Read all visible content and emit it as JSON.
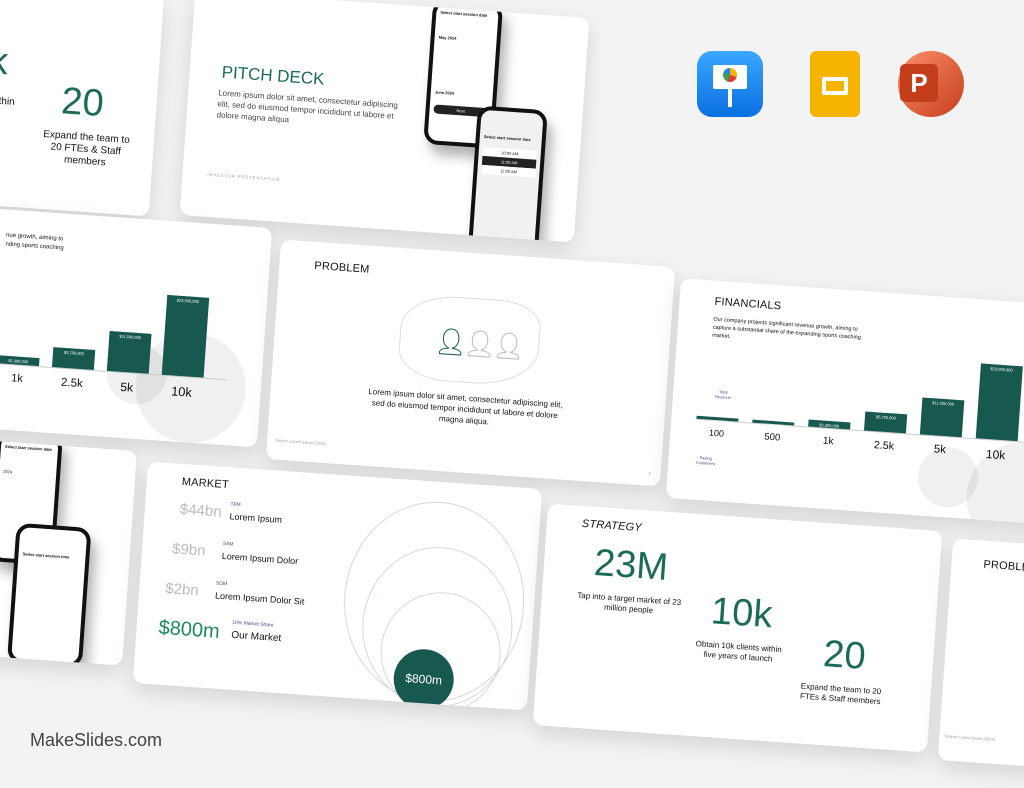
{
  "brand": "MakeSlides.com",
  "app_icons": [
    {
      "name": "keynote-icon",
      "color": "#1e8ef5"
    },
    {
      "name": "google-slides-icon",
      "color": "#f4b400"
    },
    {
      "name": "powerpoint-icon",
      "color": "#d24726"
    }
  ],
  "accent": "#1a6b58",
  "strategy_crop": {
    "fragment1": "k",
    "fragment2": "s within",
    "fragment3": "nch",
    "value": "20",
    "caption": "Expand the team to 20 FTEs & Staff members",
    "page": "8"
  },
  "pitch": {
    "title": "PITCH DECK",
    "body": "Lorem ipsum dolor sit amet, consectetur adipiscing elit, sed do eiusmod tempor incididunt ut labore et dolore magna aliqua",
    "footer": "INVESTOR PRESENTATION",
    "phone1_title": "Select start session date",
    "phone1_month1": "May 2024",
    "phone1_month2": "June 2024",
    "phone1_button": "Next",
    "phone2_title": "Select start session time",
    "phone2_slots": [
      "10:00 AM",
      "11:00 AM",
      "12:00 AM"
    ]
  },
  "chart_left": {
    "text1": "nue growth, aiming to",
    "text2": "nding sports coaching",
    "bars": [
      {
        "label": "$2,300,000",
        "cat": "1k",
        "value": 2300000
      },
      {
        "label": "$5,750,000",
        "cat": "2.5k",
        "value": 5750000
      },
      {
        "label": "$11,500,000",
        "cat": "5k",
        "value": 11500000
      },
      {
        "label": "$23,000,000",
        "cat": "10k",
        "value": 23000000
      }
    ],
    "page": "10"
  },
  "problem": {
    "title": "PROBLEM",
    "body": "Lorem ipsum dolor sit amet, consectetur adipiscing elit, sed do eiusmod tempor incididunt ut labore et dolore magna aliqua.",
    "source": "Source: Lorem ipsum (2024)",
    "page": "3"
  },
  "financials": {
    "title": "FINANCIALS",
    "body": "Our company projects significant revenue growth, aiming to capture a substantial share of the expanding sports coaching market.",
    "rev_label": "Total Revenue",
    "cust_label": "Paying Customers",
    "bars": [
      {
        "label": "$200,000",
        "cat": "100",
        "value": 200000
      },
      {
        "label": "$1,000,000",
        "cat": "500",
        "value": 1000000
      },
      {
        "label": "$2,300,000",
        "cat": "1k",
        "value": 2300000
      },
      {
        "label": "$5,750,000",
        "cat": "2.5k",
        "value": 5750000
      },
      {
        "label": "$11,500,000",
        "cat": "5k",
        "value": 11500000
      },
      {
        "label": "$23,000,000",
        "cat": "10k",
        "value": 23000000
      }
    ]
  },
  "phone_crop": {
    "title": "Select start session date",
    "title2": "Select start session time",
    "month": "2024"
  },
  "market": {
    "title": "MARKET",
    "rows": [
      {
        "value": "$44bn",
        "tag": "TAM",
        "label": "Lorem Ipsum"
      },
      {
        "value": "$9bn",
        "tag": "SAM",
        "label": "Lorem Ipsum Dolor"
      },
      {
        "value": "$2bn",
        "tag": "SOM",
        "label": "Lorem Ipsum Dolor Sit"
      },
      {
        "value": "$800m",
        "tag": "10% Market Share",
        "label": "Our Market"
      }
    ],
    "bubble": "$800m",
    "page": "4"
  },
  "strategy": {
    "title": "STRATEGY",
    "items": [
      {
        "value": "23M",
        "caption": "Tap into a target market of 23 million people"
      },
      {
        "value": "10k",
        "caption": "Obtain 10k clients within five years of launch"
      },
      {
        "value": "20",
        "caption": "Expand the team to 20 FTEs & Staff members"
      }
    ],
    "page": "8"
  },
  "problem_right": {
    "title": "PROBLEM",
    "source": "Source: Lorem ipsum (2024)"
  }
}
